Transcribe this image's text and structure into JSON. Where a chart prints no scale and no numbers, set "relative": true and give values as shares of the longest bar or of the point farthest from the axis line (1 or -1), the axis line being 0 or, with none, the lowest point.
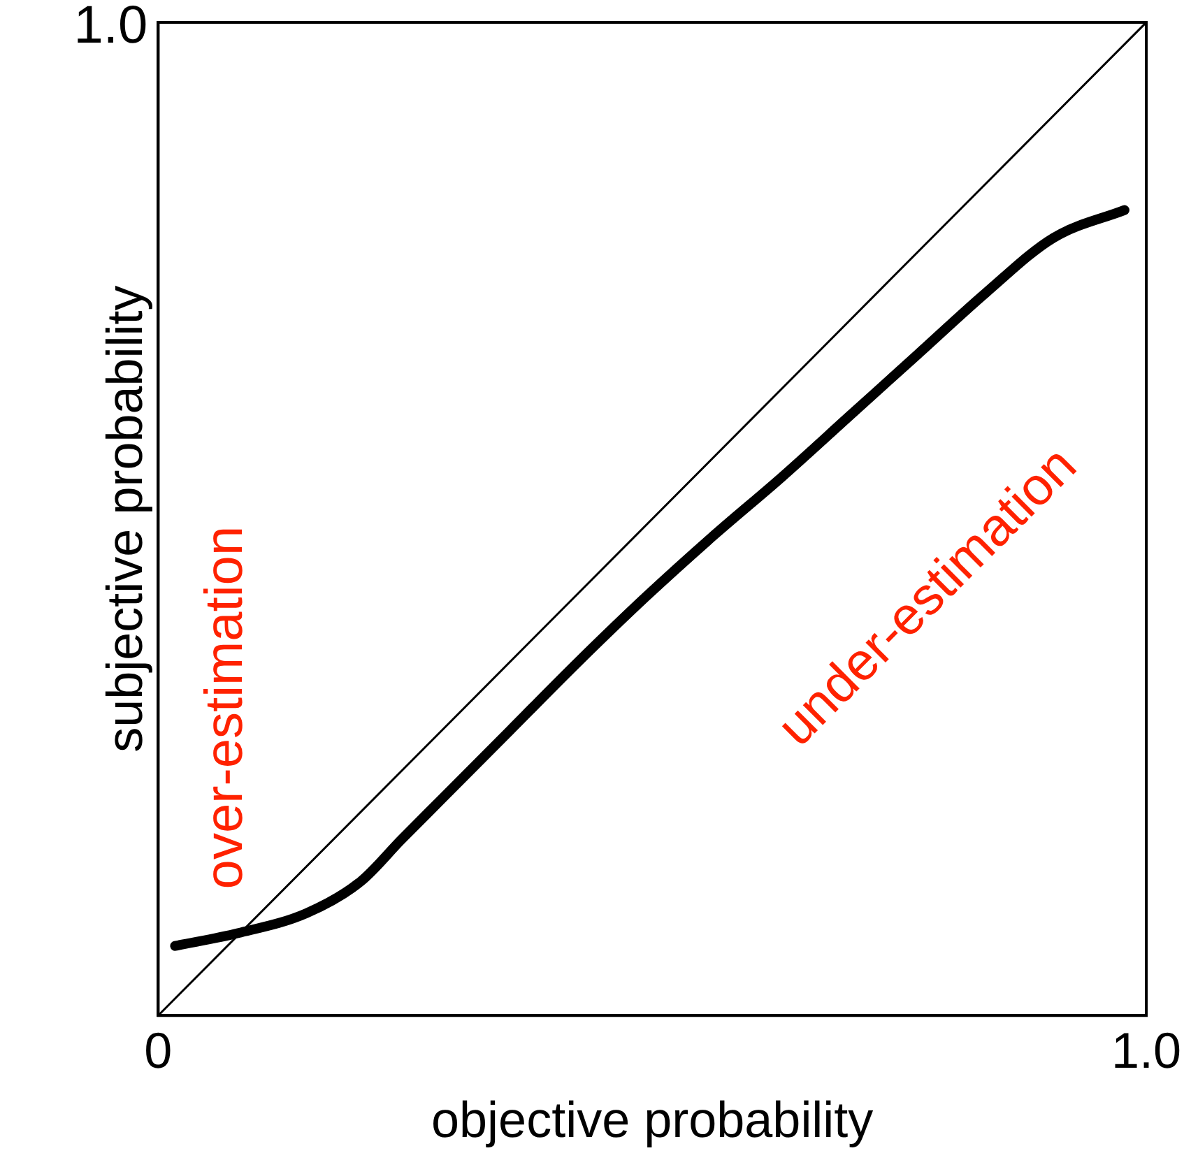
{
  "chart_data": {
    "type": "line",
    "xlabel": "objective probability",
    "ylabel": "subjective probability",
    "xlim": [
      0,
      1
    ],
    "relative": true,
    "xticks": [
      0,
      {
        "value": 1,
        "label": "1.0"
      }
    ],
    "legend": false,
    "marker": "none",
    "line_style": "solid",
    "series": [
      {
        "color": "#000000",
        "x": [
          0,
          1
        ],
        "values": [
          0,
          1
        ]
      },
      {
        "color": "#000000",
        "x": [
          0.017,
          0.081,
          0.15,
          0.205,
          0.246,
          0.287,
          0.356,
          0.425,
          0.494,
          0.563,
          0.631,
          0.7,
          0.769,
          0.838,
          0.906,
          0.978
        ],
        "values": [
          0.07,
          0.083,
          0.103,
          0.135,
          0.177,
          0.218,
          0.287,
          0.356,
          0.422,
          0.484,
          0.542,
          0.604,
          0.666,
          0.728,
          0.783,
          0.811
        ]
      }
    ],
    "annotations": [
      "over-estimation",
      "under-estimation",
      "1.0"
    ]
  }
}
